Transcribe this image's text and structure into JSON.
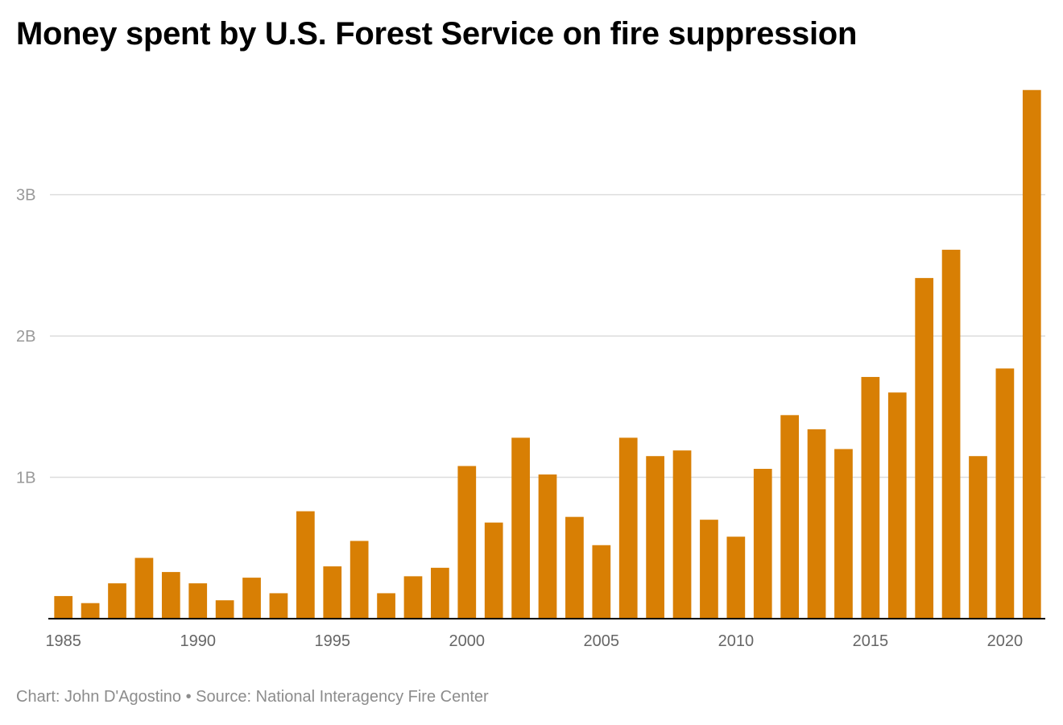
{
  "chart_data": {
    "type": "bar",
    "title": "Money spent by U.S. Forest Service on fire suppression",
    "xlabel": "",
    "ylabel": "",
    "grid": true,
    "ylim": [
      0,
      3.75
    ],
    "yticks": [
      1,
      2,
      3
    ],
    "ytick_labels": [
      "1B",
      "2B",
      "3B"
    ],
    "xtick_labels": [
      "1985",
      "1990",
      "1995",
      "2000",
      "2005",
      "2010",
      "2015",
      "2020"
    ],
    "categories": [
      "1985",
      "1986",
      "1987",
      "1988",
      "1989",
      "1990",
      "1991",
      "1992",
      "1993",
      "1994",
      "1995",
      "1996",
      "1997",
      "1998",
      "1999",
      "2000",
      "2001",
      "2002",
      "2003",
      "2004",
      "2005",
      "2006",
      "2007",
      "2008",
      "2009",
      "2010",
      "2011",
      "2012",
      "2013",
      "2014",
      "2015",
      "2016",
      "2017",
      "2018",
      "2019",
      "2020",
      "2021"
    ],
    "values": [
      0.16,
      0.11,
      0.25,
      0.43,
      0.33,
      0.25,
      0.13,
      0.29,
      0.18,
      0.76,
      0.37,
      0.55,
      0.18,
      0.3,
      0.36,
      1.08,
      0.68,
      1.28,
      1.02,
      0.72,
      0.52,
      1.28,
      1.15,
      1.19,
      0.7,
      0.58,
      1.06,
      1.44,
      1.34,
      1.2,
      1.71,
      1.6,
      2.41,
      2.61,
      1.15,
      1.77,
      3.74
    ],
    "color": "#d87f04"
  },
  "footer": {
    "credit": "Chart: John D'Agostino • Source: National Interagency Fire Center"
  }
}
